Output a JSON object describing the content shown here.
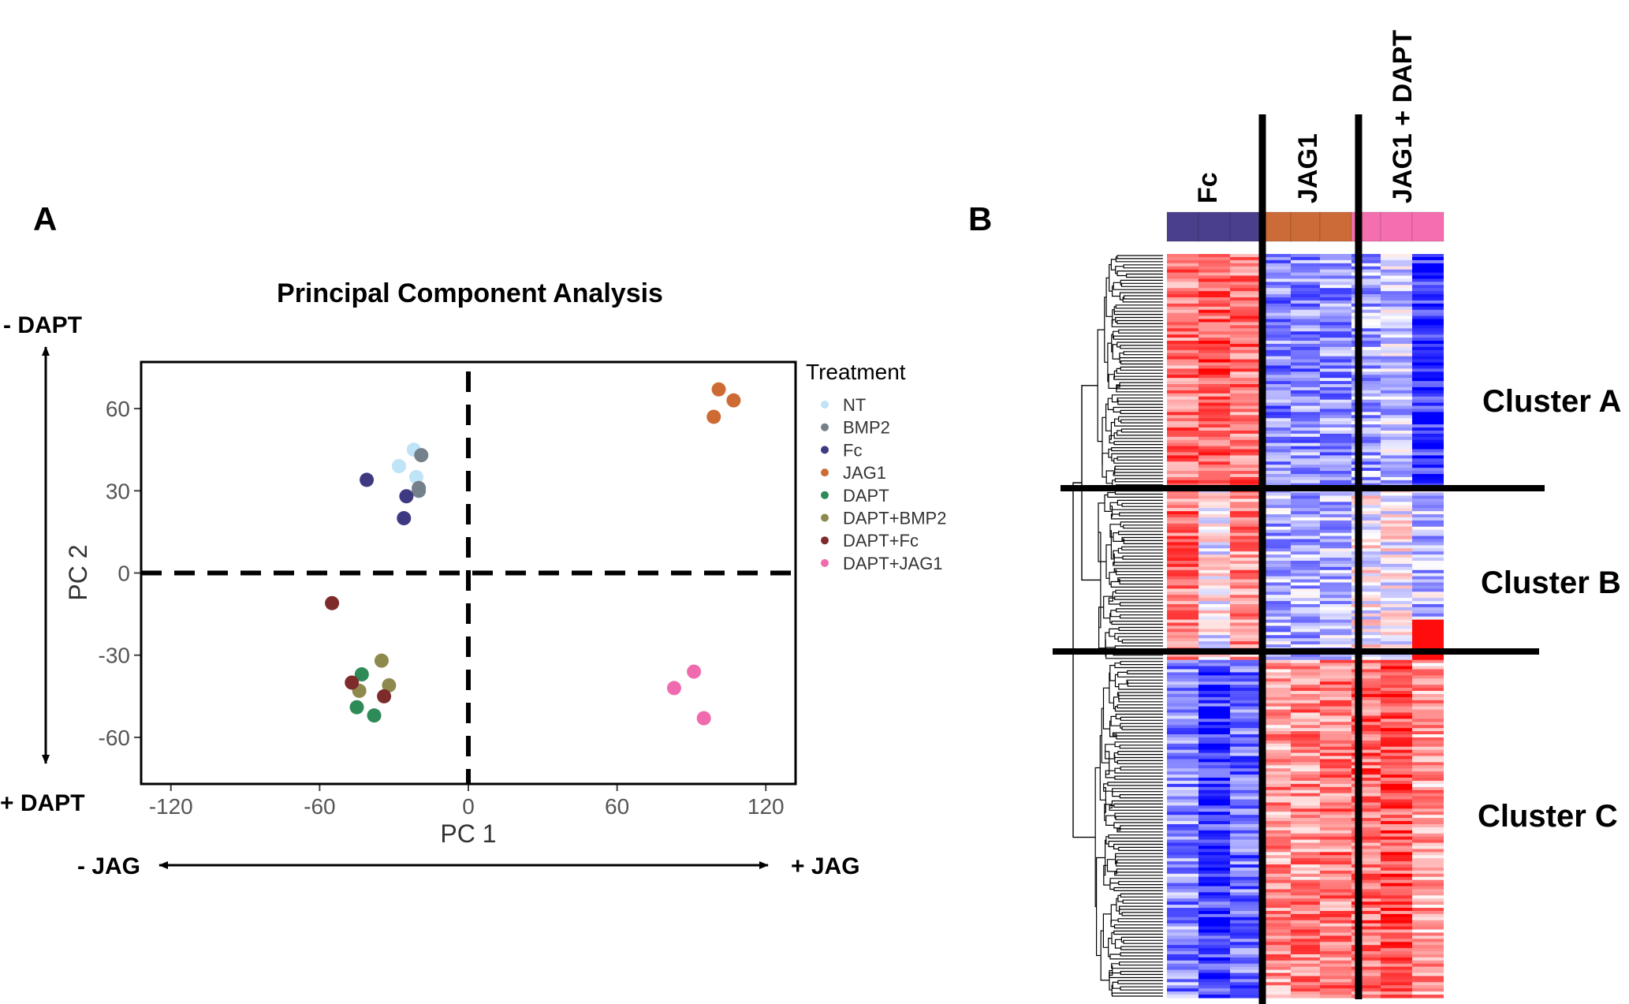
{
  "panel_a": {
    "letter": "A",
    "dapt_minus": "- DAPT",
    "dapt_plus": "+ DAPT",
    "jag_minus": "- JAG",
    "jag_plus": "+ JAG"
  },
  "panel_b": {
    "letter": "B",
    "groups": [
      {
        "label": "Fc",
        "color": "#4A3F8C"
      },
      {
        "label": "JAG1",
        "color": "#CC6B38"
      },
      {
        "label": "JAG1 + DAPT",
        "color": "#F56FB0"
      }
    ],
    "clusters": [
      "Cluster A",
      "Cluster B",
      "Cluster C"
    ]
  },
  "chart_data": [
    {
      "type": "scatter",
      "title": "Principal Component Analysis",
      "xlabel": "PC 1",
      "ylabel": "PC 2",
      "xlim": [
        -132,
        132
      ],
      "ylim": [
        -77,
        77
      ],
      "xticks": [
        -120,
        -60,
        0,
        60,
        120
      ],
      "yticks": [
        -60,
        -30,
        0,
        30,
        60
      ],
      "reference_lines": {
        "x": 0,
        "y": 0,
        "style": "dashed"
      },
      "legend_title": "Treatment",
      "legend_position": "right",
      "series": [
        {
          "name": "NT",
          "color": "#BFE3F7",
          "points": [
            [
              -28,
              39
            ],
            [
              -22,
              45
            ],
            [
              -21,
              35
            ]
          ]
        },
        {
          "name": "BMP2",
          "color": "#74808A",
          "points": [
            [
              -19,
              43
            ],
            [
              -20,
              31
            ],
            [
              -20,
              30
            ]
          ]
        },
        {
          "name": "Fc",
          "color": "#3E3A82",
          "points": [
            [
              -41,
              34
            ],
            [
              -25,
              28
            ],
            [
              -26,
              20
            ]
          ]
        },
        {
          "name": "JAG1",
          "color": "#CE6B35",
          "points": [
            [
              101,
              67
            ],
            [
              107,
              63
            ],
            [
              99,
              57
            ]
          ]
        },
        {
          "name": "DAPT",
          "color": "#2E8B57",
          "points": [
            [
              -43,
              -37
            ],
            [
              -45,
              -49
            ],
            [
              -38,
              -52
            ]
          ]
        },
        {
          "name": "DAPT+BMP2",
          "color": "#8E8A4E",
          "points": [
            [
              -35,
              -32
            ],
            [
              -44,
              -43
            ],
            [
              -32,
              -41
            ]
          ]
        },
        {
          "name": "DAPT+Fc",
          "color": "#7D2B2B",
          "points": [
            [
              -55,
              -11
            ],
            [
              -47,
              -40
            ],
            [
              -34,
              -45
            ]
          ]
        },
        {
          "name": "DAPT+JAG1",
          "color": "#F06AAE",
          "points": [
            [
              91,
              -36
            ],
            [
              83,
              -42
            ],
            [
              95,
              -53
            ]
          ]
        }
      ]
    },
    {
      "type": "heatmap",
      "columns": [
        "Fc",
        "Fc",
        "Fc",
        "JAG1",
        "JAG1",
        "JAG1",
        "JAG1 + DAPT",
        "JAG1 + DAPT",
        "JAG1 + DAPT"
      ],
      "color_scale": {
        "low": "#1F2BF5",
        "mid": "#FFFFFF",
        "high": "#F51F1F"
      },
      "row_clusters": [
        {
          "name": "Cluster A",
          "pattern": [
            0.55,
            0.65,
            0.55,
            -0.45,
            -0.45,
            -0.4,
            -0.35,
            -0.2,
            -0.8
          ]
        },
        {
          "name": "Cluster B",
          "pattern": [
            0.55,
            0.0,
            0.45,
            -0.3,
            -0.3,
            -0.3,
            0.0,
            0.0,
            -0.25
          ]
        },
        {
          "name": "Cluster C",
          "pattern": [
            -0.45,
            -0.75,
            -0.55,
            0.4,
            0.45,
            0.5,
            0.6,
            0.7,
            0.35
          ]
        }
      ],
      "row_split_fractions": [
        0.317,
        0.545
      ]
    }
  ]
}
